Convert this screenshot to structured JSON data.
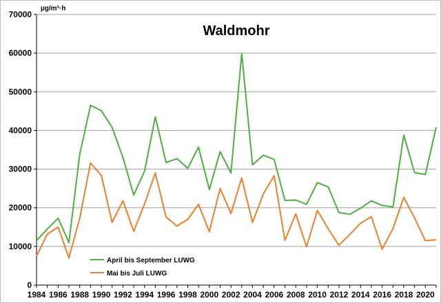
{
  "chart_data": {
    "type": "line",
    "title": "Waldmohr",
    "unit_label": "µg/m³·h",
    "xlabel": "",
    "ylabel": "",
    "ylim": [
      0,
      70000
    ],
    "yticks": [
      0,
      10000,
      20000,
      30000,
      40000,
      50000,
      60000,
      70000
    ],
    "xlim": [
      1984,
      2021
    ],
    "xticks": [
      "1984",
      "1986",
      "1988",
      "1990",
      "1992",
      "1994",
      "1996",
      "1998",
      "2000",
      "2002",
      "2004",
      "2006",
      "2008",
      "2010",
      "2012",
      "2014",
      "2016",
      "2018",
      "2020"
    ],
    "grid": true,
    "legend_position": "bottom-left",
    "x": [
      1984,
      1985,
      1986,
      1987,
      1988,
      1989,
      1990,
      1991,
      1992,
      1993,
      1994,
      1995,
      1996,
      1997,
      1998,
      1999,
      2000,
      2001,
      2002,
      2003,
      2004,
      2005,
      2006,
      2007,
      2008,
      2009,
      2010,
      2011,
      2012,
      2013,
      2014,
      2015,
      2016,
      2017,
      2018,
      2019,
      2020,
      2021
    ],
    "series": [
      {
        "name": "April bis September LUWG",
        "color": "#4CAF3F",
        "values": [
          11500,
          14500,
          17300,
          11000,
          33800,
          46500,
          45100,
          40800,
          33000,
          23300,
          29500,
          43500,
          31700,
          32700,
          30200,
          35700,
          24700,
          34500,
          29000,
          59900,
          31100,
          33600,
          32500,
          21900,
          22000,
          20900,
          26500,
          25400,
          18800,
          18300,
          19900,
          21800,
          20600,
          20200,
          38800,
          29100,
          28600,
          40800
        ]
      },
      {
        "name": "Mai bis Juli LUWG",
        "color": "#F07E26",
        "values": [
          7500,
          13200,
          15000,
          7000,
          17300,
          31600,
          28400,
          16200,
          21800,
          13900,
          21000,
          29000,
          17600,
          15300,
          17000,
          20900,
          13800,
          25000,
          18500,
          27700,
          16200,
          23600,
          28300,
          11600,
          18400,
          9900,
          19300,
          14600,
          10300,
          13100,
          16000,
          17700,
          9300,
          14600,
          22700,
          17400,
          11500,
          11700
        ]
      }
    ]
  }
}
